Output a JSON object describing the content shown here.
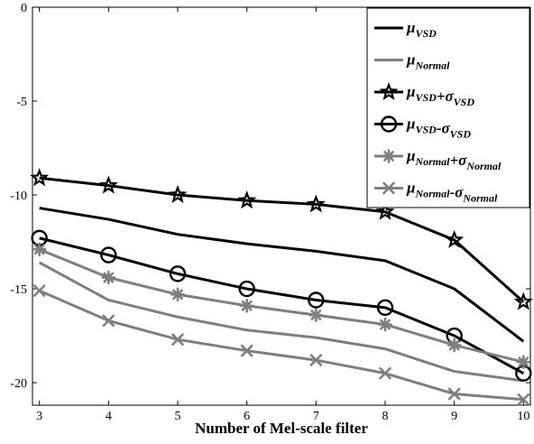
{
  "chart_data": {
    "type": "line",
    "title": "",
    "xlabel": "Number of Mel-scale filter",
    "ylabel": "",
    "x": [
      3,
      4,
      5,
      6,
      7,
      8,
      9,
      10
    ],
    "xlim": [
      2.9,
      10.1
    ],
    "ylim": [
      -21.2,
      0
    ],
    "xticks": [
      "3",
      "4",
      "5",
      "6",
      "7",
      "8",
      "9",
      "10"
    ],
    "yticks": [
      "0",
      "-5",
      "-10",
      "-15",
      "-20"
    ],
    "ytick_values": [
      0,
      -5,
      -10,
      -15,
      -20
    ],
    "grid": false,
    "legend_position": "top-right",
    "series": [
      {
        "name": "μVSD",
        "label_parts": [
          [
            "μ",
            "VSD"
          ]
        ],
        "color": "#000000",
        "marker": "none",
        "values": [
          -10.7,
          -11.3,
          -12.1,
          -12.6,
          -13.0,
          -13.5,
          -15.0,
          -17.8
        ]
      },
      {
        "name": "μNormal",
        "label_parts": [
          [
            "μ",
            "Normal"
          ]
        ],
        "color": "#7f7f7f",
        "marker": "none",
        "values": [
          -13.6,
          -15.6,
          -16.5,
          -17.2,
          -17.6,
          -18.2,
          -19.4,
          -19.9
        ]
      },
      {
        "name": "μVSD+σVSD",
        "label_parts": [
          [
            "μ",
            "VSD"
          ],
          [
            "+σ",
            "VSD"
          ]
        ],
        "color": "#000000",
        "marker": "star",
        "values": [
          -9.1,
          -9.5,
          -10.0,
          -10.3,
          -10.5,
          -10.9,
          -12.4,
          -15.7
        ]
      },
      {
        "name": "μVSD-σVSD",
        "label_parts": [
          [
            "μ",
            "VSD"
          ],
          [
            "-σ",
            "VSD"
          ]
        ],
        "color": "#000000",
        "marker": "circle",
        "values": [
          -12.3,
          -13.2,
          -14.2,
          -15.0,
          -15.6,
          -16.0,
          -17.5,
          -19.5
        ]
      },
      {
        "name": "μNormal+σNormal",
        "label_parts": [
          [
            "μ",
            "Normal"
          ],
          [
            "+σ",
            "Normal"
          ]
        ],
        "color": "#7f7f7f",
        "marker": "asterisk",
        "values": [
          -12.9,
          -14.4,
          -15.3,
          -15.9,
          -16.4,
          -16.9,
          -18.0,
          -18.9
        ]
      },
      {
        "name": "μNormal-σNormal",
        "label_parts": [
          [
            "μ",
            "Normal"
          ],
          [
            "-σ",
            "Normal"
          ]
        ],
        "color": "#7f7f7f",
        "marker": "x",
        "values": [
          -15.1,
          -16.7,
          -17.7,
          -18.3,
          -18.8,
          -19.5,
          -20.6,
          -20.9
        ]
      }
    ]
  }
}
